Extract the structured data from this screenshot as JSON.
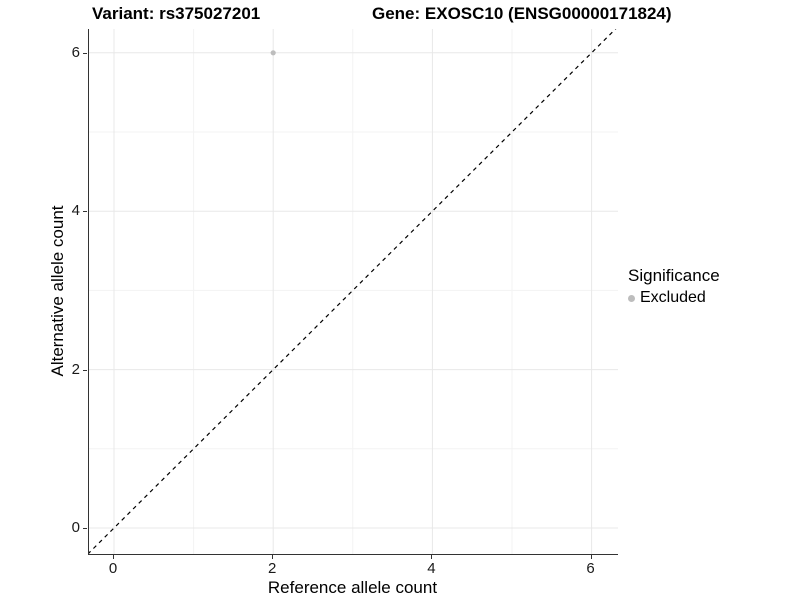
{
  "title": {
    "variant": "Variant: rs375027201",
    "gene": "Gene: EXOSC10 (ENSG00000171824)"
  },
  "chart_data": {
    "type": "scatter",
    "xlabel": "Reference allele count",
    "ylabel": "Alternative allele count",
    "xlim": [
      -0.33,
      6.33
    ],
    "ylim": [
      -0.33,
      6.33
    ],
    "x_ticks": [
      0,
      2,
      4,
      6
    ],
    "y_ticks": [
      0,
      2,
      4,
      6
    ],
    "x_minor_gridlines": [
      1,
      3,
      5
    ],
    "y_minor_gridlines": [
      1,
      3,
      5
    ],
    "grid": "white background, light gray major and minor gridlines, axis lines on left and bottom only",
    "points": [
      {
        "x": 2,
        "y": 6,
        "significance": "Excluded"
      }
    ],
    "identity_line": {
      "description": "y = x diagonal reference line, corner to corner",
      "from": [
        -0.33,
        -0.33
      ],
      "to": [
        6.33,
        6.33
      ],
      "style": "dashed",
      "color": "#000000"
    },
    "legend": {
      "title": "Significance",
      "position": "right",
      "items": [
        {
          "label": "Excluded",
          "color": "#bdbdbd"
        }
      ]
    }
  },
  "colors": {
    "background": "#ffffff",
    "axis_line": "#333333",
    "grid_major": "#e8e8e8",
    "grid_minor": "#f3f3f3",
    "point": "#bdbdbd",
    "text": "#000000"
  }
}
